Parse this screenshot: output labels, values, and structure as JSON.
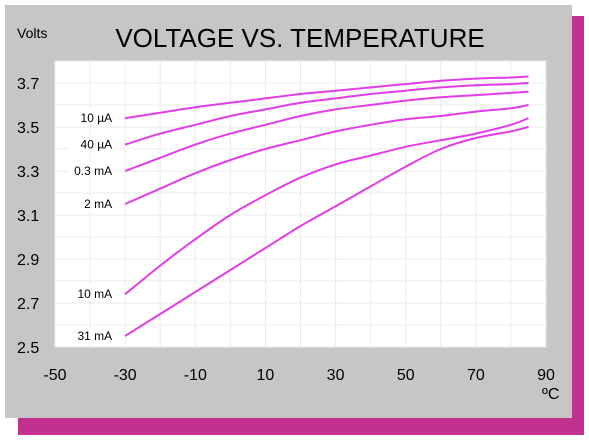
{
  "colors": {
    "frame_shadow": "#c4308f",
    "frame": "#c6c6c6",
    "plot_bg": "#ffffff",
    "grid": "#ebebeb",
    "curve": "#e23de6",
    "text": "#000000"
  },
  "chart_data": {
    "type": "line",
    "title": "VOLTAGE VS. TEMPERATURE",
    "ylabel": "Volts",
    "xunit": "ºC",
    "xlim": [
      -50,
      90
    ],
    "ylim": [
      2.5,
      3.8
    ],
    "xticks": [
      "-50",
      "-30",
      "-10",
      "10",
      "30",
      "50",
      "70",
      "90"
    ],
    "yticks": [
      "2.5",
      "2.7",
      "2.9",
      "3.1",
      "3.3",
      "3.5",
      "3.7"
    ],
    "grid": true,
    "series": [
      {
        "name": "10 µA",
        "x": [
          -30,
          -20,
          -10,
          0,
          10,
          20,
          30,
          40,
          50,
          60,
          70,
          80,
          85
        ],
        "y": [
          3.54,
          3.565,
          3.59,
          3.61,
          3.63,
          3.65,
          3.665,
          3.68,
          3.695,
          3.71,
          3.72,
          3.725,
          3.73
        ]
      },
      {
        "name": "40 µA",
        "x": [
          -30,
          -20,
          -10,
          0,
          10,
          20,
          30,
          40,
          50,
          60,
          70,
          80,
          85
        ],
        "y": [
          3.42,
          3.47,
          3.51,
          3.55,
          3.58,
          3.61,
          3.63,
          3.65,
          3.665,
          3.68,
          3.69,
          3.695,
          3.7
        ]
      },
      {
        "name": "0.3 mA",
        "x": [
          -30,
          -20,
          -10,
          0,
          10,
          20,
          30,
          40,
          50,
          60,
          70,
          80,
          85
        ],
        "y": [
          3.3,
          3.36,
          3.42,
          3.47,
          3.51,
          3.55,
          3.58,
          3.6,
          3.62,
          3.635,
          3.645,
          3.655,
          3.66
        ]
      },
      {
        "name": "2 mA",
        "x": [
          -30,
          -20,
          -10,
          0,
          10,
          20,
          30,
          40,
          50,
          60,
          70,
          80,
          85
        ],
        "y": [
          3.15,
          3.22,
          3.29,
          3.35,
          3.4,
          3.44,
          3.48,
          3.51,
          3.535,
          3.55,
          3.57,
          3.585,
          3.6
        ]
      },
      {
        "name": "10 mA",
        "x": [
          -30,
          -20,
          -10,
          0,
          10,
          20,
          30,
          40,
          50,
          60,
          70,
          80,
          85
        ],
        "y": [
          2.74,
          2.87,
          2.99,
          3.1,
          3.19,
          3.27,
          3.33,
          3.37,
          3.41,
          3.44,
          3.47,
          3.51,
          3.54
        ]
      },
      {
        "name": "31 mA",
        "x": [
          -30,
          -20,
          -10,
          0,
          10,
          20,
          30,
          40,
          50,
          60,
          70,
          80,
          85
        ],
        "y": [
          2.55,
          2.65,
          2.75,
          2.85,
          2.95,
          3.05,
          3.14,
          3.23,
          3.32,
          3.4,
          3.45,
          3.48,
          3.5
        ]
      }
    ]
  }
}
